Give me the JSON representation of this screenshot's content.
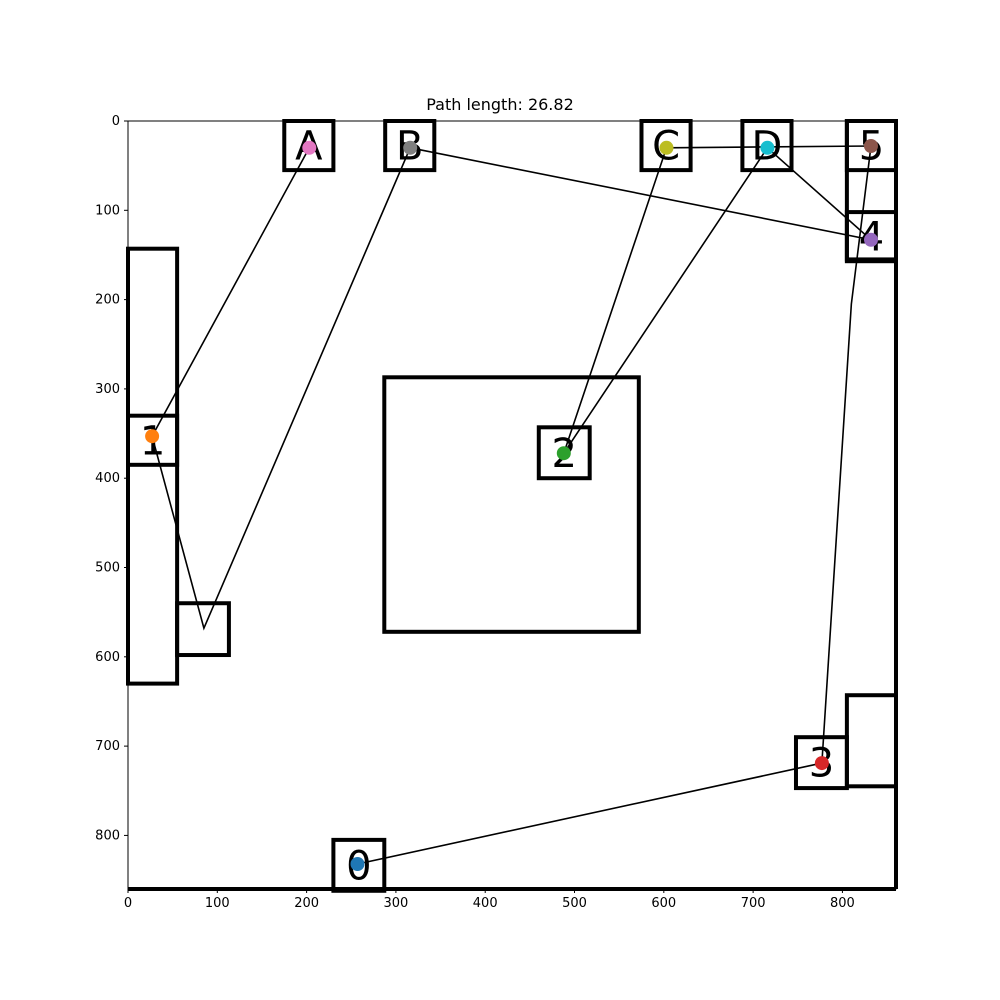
{
  "title": "Path length: 26.82",
  "chart_data": {
    "type": "scatter",
    "xlim": [
      0,
      860
    ],
    "ylim": [
      0,
      860
    ],
    "y_inverted": true,
    "grid": false,
    "x_ticks": [
      "0",
      "100",
      "200",
      "300",
      "400",
      "500",
      "600",
      "700",
      "800"
    ],
    "y_ticks": [
      "0",
      "100",
      "200",
      "300",
      "400",
      "500",
      "600",
      "700",
      "800"
    ],
    "obstacles": [
      {
        "x": 0,
        "y": 143,
        "w": 55,
        "h": 487
      },
      {
        "x": 55,
        "y": 540,
        "w": 58,
        "h": 58
      },
      {
        "x": 287,
        "y": 287,
        "w": 285,
        "h": 285
      },
      {
        "x": 805,
        "y": 643,
        "w": 55,
        "h": 102
      },
      {
        "x": 805,
        "y": 0,
        "w": 55,
        "h": 155
      }
    ],
    "labeled_boxes": [
      {
        "label": "A",
        "x": 175,
        "y": 0,
        "w": 55,
        "h": 55
      },
      {
        "label": "B",
        "x": 288,
        "y": 0,
        "w": 55,
        "h": 55
      },
      {
        "label": "C",
        "x": 575,
        "y": 0,
        "w": 55,
        "h": 55
      },
      {
        "label": "D",
        "x": 688,
        "y": 0,
        "w": 55,
        "h": 55
      },
      {
        "label": "5",
        "x": 805,
        "y": 0,
        "w": 55,
        "h": 55
      },
      {
        "label": "4",
        "x": 805,
        "y": 102,
        "w": 55,
        "h": 55
      },
      {
        "label": "1",
        "x": 0,
        "y": 330,
        "w": 55,
        "h": 55
      },
      {
        "label": "2",
        "x": 460,
        "y": 343,
        "w": 57,
        "h": 57
      },
      {
        "label": "3",
        "x": 748,
        "y": 690,
        "w": 57,
        "h": 57
      },
      {
        "label": "0",
        "x": 230,
        "y": 805,
        "w": 57,
        "h": 57
      }
    ],
    "points": [
      {
        "label": "0",
        "x": 257,
        "y": 832,
        "color": "#1f77b4"
      },
      {
        "label": "1",
        "x": 27,
        "y": 353,
        "color": "#ff7f0e"
      },
      {
        "label": "2",
        "x": 488,
        "y": 372,
        "color": "#2ca02c"
      },
      {
        "label": "3",
        "x": 777,
        "y": 719,
        "color": "#d62728"
      },
      {
        "label": "4",
        "x": 832,
        "y": 133,
        "color": "#9467bd"
      },
      {
        "label": "5",
        "x": 832,
        "y": 28,
        "color": "#8c564b"
      },
      {
        "label": "A",
        "x": 203,
        "y": 30,
        "color": "#e377c2"
      },
      {
        "label": "B",
        "x": 316,
        "y": 30,
        "color": "#7f7f7f"
      },
      {
        "label": "C",
        "x": 603,
        "y": 30,
        "color": "#bcbd22"
      },
      {
        "label": "D",
        "x": 716,
        "y": 30,
        "color": "#17becf"
      }
    ],
    "path": [
      [
        257,
        832
      ],
      [
        777,
        719
      ],
      [
        810,
        205
      ],
      [
        832,
        28
      ],
      [
        603,
        30
      ],
      [
        488,
        372
      ],
      [
        716,
        30
      ],
      [
        832,
        133
      ],
      [
        316,
        30
      ],
      [
        85,
        568
      ],
      [
        27,
        353
      ],
      [
        203,
        30
      ]
    ]
  }
}
